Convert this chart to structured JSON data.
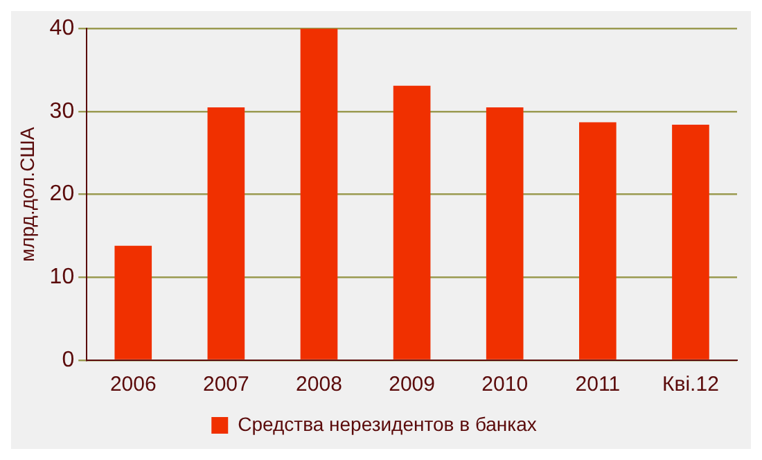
{
  "chart_data": {
    "type": "bar",
    "ylabel": "млрд.дол.США",
    "categories": [
      "2006",
      "2007",
      "2008",
      "2009",
      "2010",
      "2011",
      "Кві.12"
    ],
    "series": [
      {
        "name": "Средства нерезидентов в банках",
        "color": "#f03000",
        "values": [
          13.8,
          30.5,
          40,
          33.1,
          30.5,
          28.7,
          28.4
        ]
      }
    ],
    "ylim": [
      0,
      40
    ],
    "yticks": [
      0,
      10,
      20,
      30,
      40
    ],
    "grid": "y",
    "legend": "bottom"
  }
}
